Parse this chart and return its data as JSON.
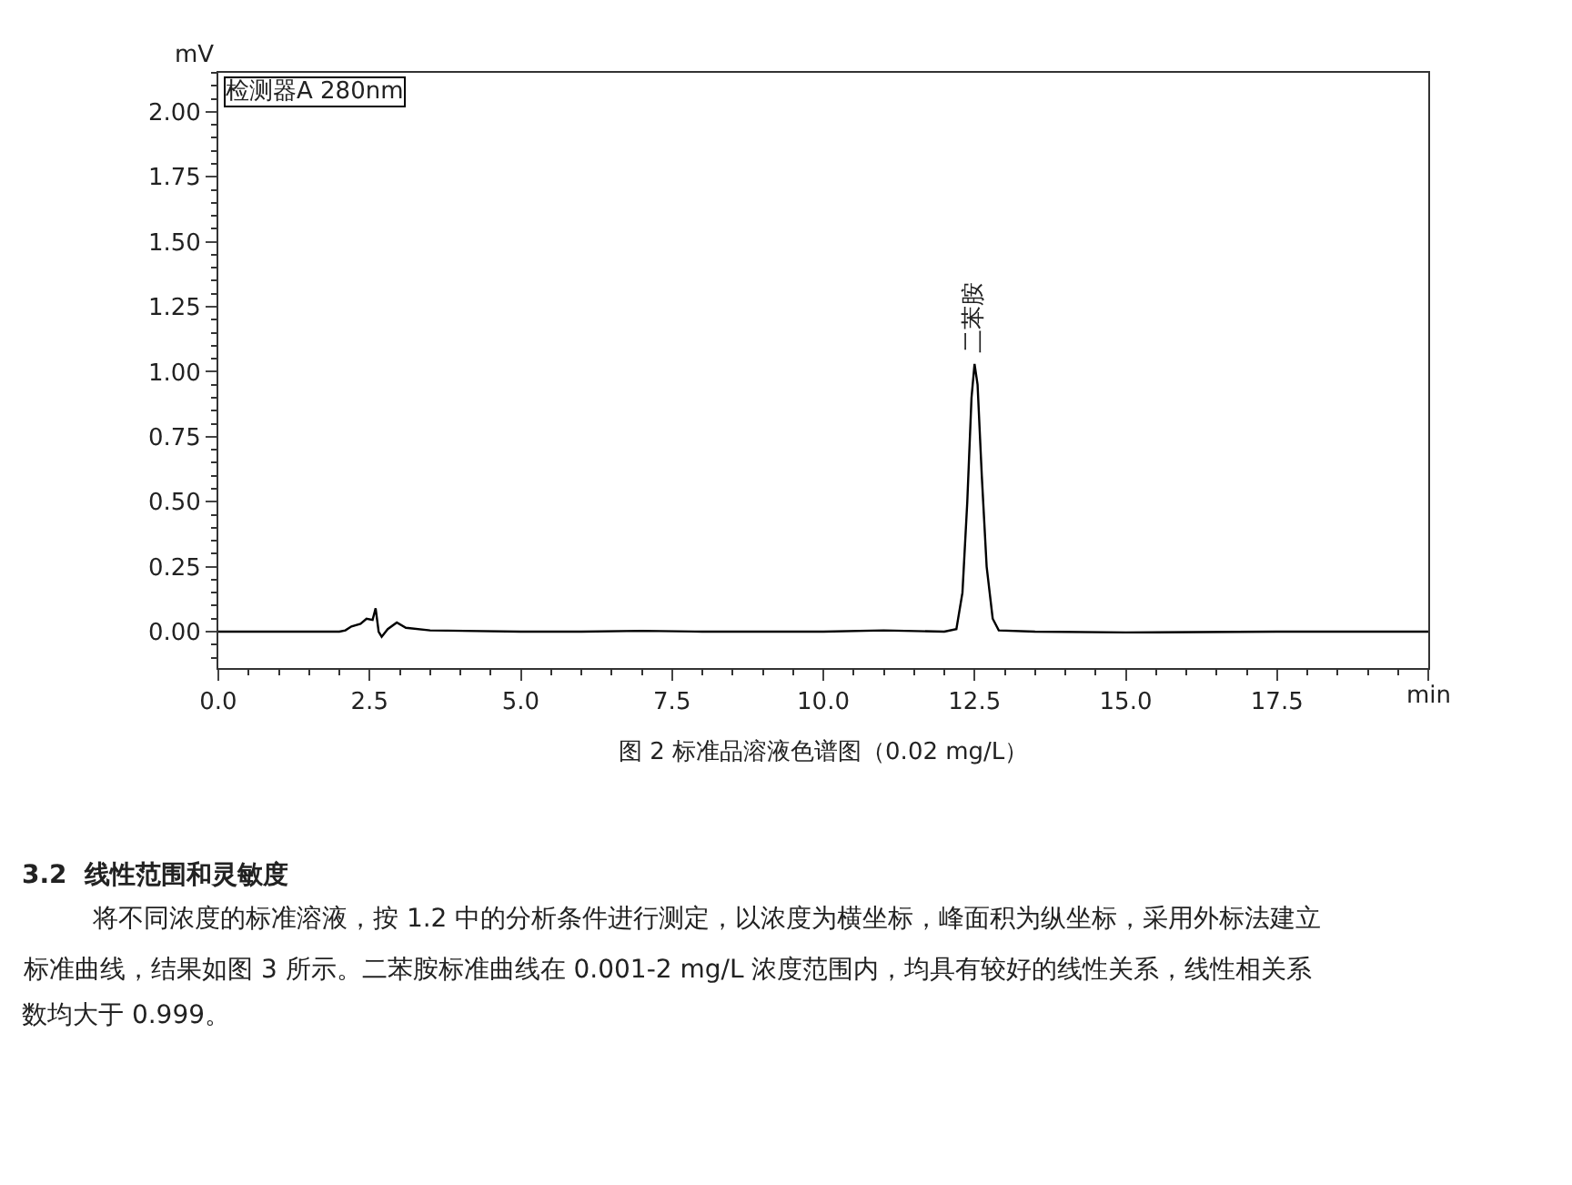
{
  "chart_data": {
    "type": "line",
    "xlabel": "min",
    "ylabel": "mV",
    "annotations": [
      "检测器A 280nm",
      "图 2 标准品溶液色谱图（0.02 mg/L）",
      "3.2  线性范围和灵敏度",
      "将不同浓度的标准溶液，按 1.2 中的分析条件进行测定，以浓度为横坐标，峰面积为纵坐标，采用外标法建立",
      "标准曲线，结果如图 3 所示。二苯胺标准曲线在 0.001-2 mg/L 浓度范围内，均具有较好的线性关系，线性相关系",
      "数均大于 0.999。",
      {
        "text": "二苯胺",
        "x": 12.5,
        "y": 1.03
      }
    ],
    "x": [
      0,
      1,
      2,
      2.1,
      2.2,
      2.35,
      2.45,
      2.55,
      2.6,
      2.65,
      2.7,
      2.8,
      2.95,
      3.1,
      3.5,
      5,
      6,
      7,
      8,
      9,
      10,
      11,
      12,
      12.2,
      12.3,
      12.38,
      12.45,
      12.5,
      12.55,
      12.62,
      12.7,
      12.8,
      12.9,
      13.5,
      15,
      17.5,
      20
    ],
    "series": [
      {
        "color": "#000000",
        "values": [
          0,
          0,
          0,
          0.005,
          0.02,
          0.03,
          0.05,
          0.045,
          0.09,
          0,
          -0.02,
          0.01,
          0.035,
          0.015,
          0.005,
          0,
          0,
          0.003,
          0,
          0,
          0,
          0.005,
          0,
          0.01,
          0.15,
          0.5,
          0.9,
          1.03,
          0.95,
          0.6,
          0.25,
          0.05,
          0.005,
          0,
          -0.003,
          0,
          0
        ]
      }
    ],
    "xlim": [
      0,
      20
    ],
    "ylim": [
      -0.14,
      2.15
    ],
    "xticks": [
      {
        "value": 0,
        "label": "0.0"
      },
      {
        "value": 2.5,
        "label": "2.5"
      },
      {
        "value": 5,
        "label": "5.0"
      },
      {
        "value": 7.5,
        "label": "7.5"
      },
      {
        "value": 10,
        "label": "10.0"
      },
      {
        "value": 12.5,
        "label": "12.5"
      },
      {
        "value": 15,
        "label": "15.0"
      },
      {
        "value": 17.5,
        "label": "17.5"
      },
      {
        "value": 20,
        "label": null
      }
    ],
    "yticks": [
      {
        "value": 0,
        "label": "0.00"
      },
      {
        "value": 0.25,
        "label": "0.25"
      },
      {
        "value": 0.5,
        "label": "0.50"
      },
      {
        "value": 0.75,
        "label": "0.75"
      },
      {
        "value": 1,
        "label": "1.00"
      },
      {
        "value": 1.25,
        "label": "1.25"
      },
      {
        "value": 1.5,
        "label": "1.50"
      },
      {
        "value": 1.75,
        "label": "1.75"
      },
      {
        "value": 2,
        "label": "2.00"
      }
    ],
    "grid": false,
    "marker": "none",
    "line_style": "solid"
  }
}
